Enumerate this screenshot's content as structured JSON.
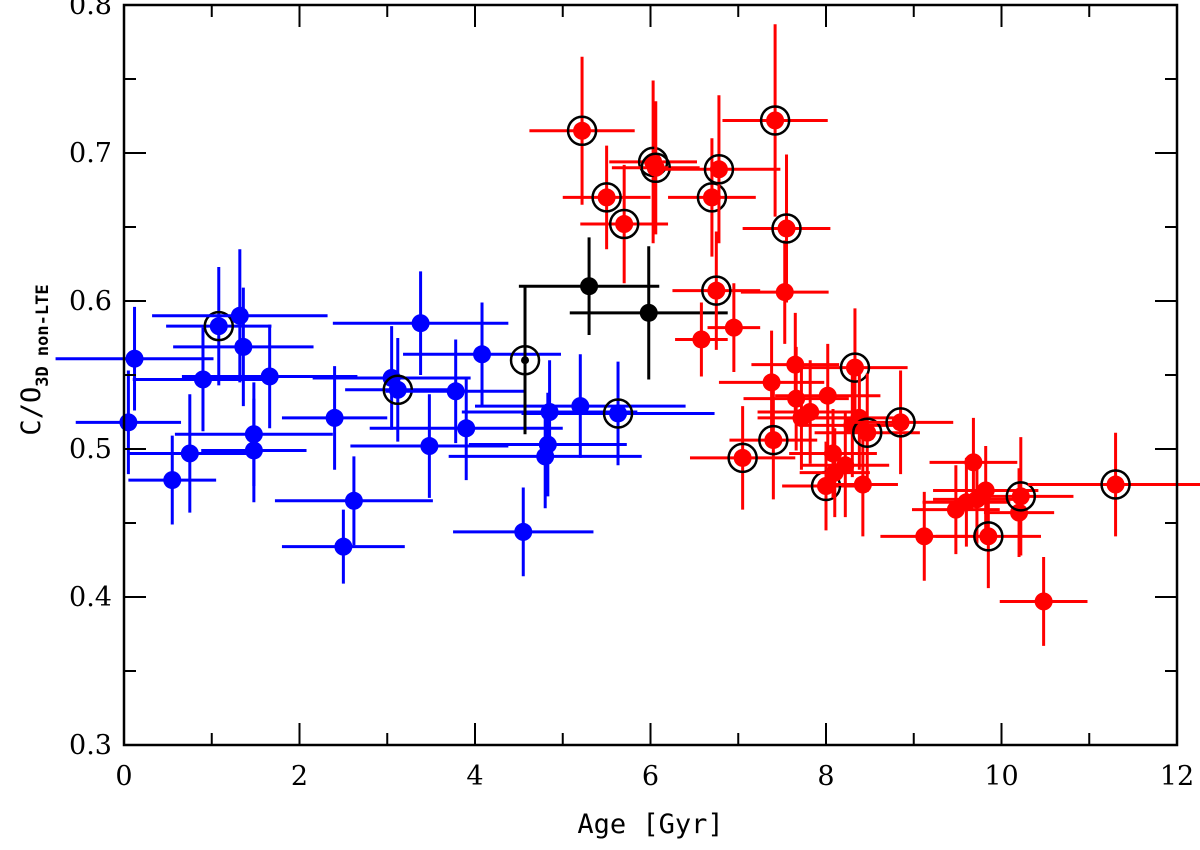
{
  "chart_data": {
    "type": "scatter",
    "xlabel": "Age [Gyr]",
    "ylabel": "C/O",
    "ylabel_subscript": "3D non-LTE",
    "xlim": [
      0,
      12
    ],
    "ylim": [
      0.3,
      0.8
    ],
    "x_ticks": [
      0,
      2,
      4,
      6,
      8,
      10,
      12
    ],
    "y_ticks": [
      0.3,
      0.4,
      0.5,
      0.6,
      0.7,
      0.8
    ],
    "x_tick_labels": [
      "0",
      "2",
      "4",
      "6",
      "8",
      "10",
      "12"
    ],
    "y_tick_labels": [
      "0.3",
      "0.4",
      "0.5",
      "0.6",
      "0.7",
      "0.8"
    ],
    "grid": false,
    "colors": {
      "blue": "#0000ff",
      "red": "#ff0000",
      "black": "#000000",
      "ring": "#000000"
    },
    "series": [
      {
        "color": "blue",
        "points": [
          {
            "x": 0.05,
            "y": 0.518,
            "ex": 0.6,
            "ey": 0.035,
            "circled": false
          },
          {
            "x": 0.12,
            "y": 0.561,
            "ex": 0.9,
            "ey": 0.035,
            "circled": false
          },
          {
            "x": 0.55,
            "y": 0.479,
            "ex": 0.5,
            "ey": 0.03,
            "circled": false
          },
          {
            "x": 0.75,
            "y": 0.497,
            "ex": 0.7,
            "ey": 0.04,
            "circled": false
          },
          {
            "x": 0.9,
            "y": 0.547,
            "ex": 0.8,
            "ey": 0.035,
            "circled": false
          },
          {
            "x": 1.08,
            "y": 0.583,
            "ex": 0.6,
            "ey": 0.04,
            "circled": true
          },
          {
            "x": 1.32,
            "y": 0.59,
            "ex": 1.0,
            "ey": 0.045,
            "circled": false
          },
          {
            "x": 1.36,
            "y": 0.569,
            "ex": 0.8,
            "ey": 0.04,
            "circled": false
          },
          {
            "x": 1.48,
            "y": 0.51,
            "ex": 0.9,
            "ey": 0.035,
            "circled": false
          },
          {
            "x": 1.48,
            "y": 0.499,
            "ex": 0.6,
            "ey": 0.035,
            "circled": false
          },
          {
            "x": 1.66,
            "y": 0.549,
            "ex": 1.0,
            "ey": 0.035,
            "circled": false
          },
          {
            "x": 2.4,
            "y": 0.521,
            "ex": 0.6,
            "ey": 0.035,
            "circled": false
          },
          {
            "x": 2.5,
            "y": 0.434,
            "ex": 0.7,
            "ey": 0.025,
            "circled": false
          },
          {
            "x": 2.62,
            "y": 0.465,
            "ex": 0.9,
            "ey": 0.03,
            "circled": false
          },
          {
            "x": 3.05,
            "y": 0.548,
            "ex": 0.9,
            "ey": 0.035,
            "circled": false
          },
          {
            "x": 3.12,
            "y": 0.54,
            "ex": 0.6,
            "ey": 0.035,
            "circled": true
          },
          {
            "x": 3.38,
            "y": 0.585,
            "ex": 1.0,
            "ey": 0.035,
            "circled": false
          },
          {
            "x": 3.48,
            "y": 0.502,
            "ex": 0.9,
            "ey": 0.035,
            "circled": false
          },
          {
            "x": 3.78,
            "y": 0.539,
            "ex": 0.8,
            "ey": 0.035,
            "circled": false
          },
          {
            "x": 3.9,
            "y": 0.514,
            "ex": 1.1,
            "ey": 0.035,
            "circled": false
          },
          {
            "x": 4.08,
            "y": 0.564,
            "ex": 0.9,
            "ey": 0.035,
            "circled": false
          },
          {
            "x": 4.55,
            "y": 0.444,
            "ex": 0.8,
            "ey": 0.03,
            "circled": false
          },
          {
            "x": 4.8,
            "y": 0.495,
            "ex": 1.1,
            "ey": 0.035,
            "circled": false
          },
          {
            "x": 4.83,
            "y": 0.503,
            "ex": 0.9,
            "ey": 0.035,
            "circled": false
          },
          {
            "x": 4.85,
            "y": 0.525,
            "ex": 1.0,
            "ey": 0.035,
            "circled": false
          },
          {
            "x": 5.2,
            "y": 0.529,
            "ex": 1.2,
            "ey": 0.035,
            "circled": false
          },
          {
            "x": 5.63,
            "y": 0.524,
            "ex": 1.1,
            "ey": 0.035,
            "circled": true
          }
        ]
      },
      {
        "color": "black",
        "points": [
          {
            "x": 4.57,
            "y": 0.56,
            "ex": 0.0,
            "ey": 0.05,
            "circled": true,
            "small": true
          },
          {
            "x": 5.3,
            "y": 0.61,
            "ex": 0.8,
            "ey": 0.033,
            "circled": false
          },
          {
            "x": 5.98,
            "y": 0.592,
            "ex": 0.9,
            "ey": 0.045,
            "circled": false
          }
        ]
      },
      {
        "color": "red",
        "points": [
          {
            "x": 5.22,
            "y": 0.715,
            "ex": 0.6,
            "ey": 0.05,
            "circled": true
          },
          {
            "x": 5.5,
            "y": 0.67,
            "ex": 0.5,
            "ey": 0.035,
            "circled": true
          },
          {
            "x": 5.7,
            "y": 0.652,
            "ex": 0.5,
            "ey": 0.04,
            "circled": true
          },
          {
            "x": 6.03,
            "y": 0.694,
            "ex": 0.5,
            "ey": 0.055,
            "circled": true
          },
          {
            "x": 6.06,
            "y": 0.69,
            "ex": 0.5,
            "ey": 0.045,
            "circled": true
          },
          {
            "x": 6.58,
            "y": 0.574,
            "ex": 0.3,
            "ey": 0.025,
            "circled": false
          },
          {
            "x": 6.7,
            "y": 0.67,
            "ex": 0.5,
            "ey": 0.04,
            "circled": true
          },
          {
            "x": 6.75,
            "y": 0.607,
            "ex": 0.5,
            "ey": 0.04,
            "circled": true
          },
          {
            "x": 6.78,
            "y": 0.689,
            "ex": 0.7,
            "ey": 0.05,
            "circled": true
          },
          {
            "x": 6.95,
            "y": 0.582,
            "ex": 0.3,
            "ey": 0.03,
            "circled": false
          },
          {
            "x": 7.05,
            "y": 0.494,
            "ex": 0.6,
            "ey": 0.035,
            "circled": true
          },
          {
            "x": 7.38,
            "y": 0.545,
            "ex": 0.6,
            "ey": 0.035,
            "circled": false
          },
          {
            "x": 7.4,
            "y": 0.506,
            "ex": 0.5,
            "ey": 0.04,
            "circled": true
          },
          {
            "x": 7.42,
            "y": 0.722,
            "ex": 0.6,
            "ey": 0.065,
            "circled": true
          },
          {
            "x": 7.53,
            "y": 0.606,
            "ex": 0.5,
            "ey": 0.035,
            "circled": false
          },
          {
            "x": 7.55,
            "y": 0.649,
            "ex": 0.5,
            "ey": 0.05,
            "circled": true
          },
          {
            "x": 7.65,
            "y": 0.557,
            "ex": 0.5,
            "ey": 0.035,
            "circled": false
          },
          {
            "x": 7.66,
            "y": 0.534,
            "ex": 0.6,
            "ey": 0.035,
            "circled": false
          },
          {
            "x": 7.72,
            "y": 0.521,
            "ex": 0.5,
            "ey": 0.035,
            "circled": false
          },
          {
            "x": 7.82,
            "y": 0.525,
            "ex": 0.6,
            "ey": 0.035,
            "circled": false
          },
          {
            "x": 8.0,
            "y": 0.475,
            "ex": 0.5,
            "ey": 0.03,
            "circled": true
          },
          {
            "x": 8.02,
            "y": 0.536,
            "ex": 0.6,
            "ey": 0.035,
            "circled": false
          },
          {
            "x": 8.08,
            "y": 0.497,
            "ex": 0.5,
            "ey": 0.03,
            "circled": false
          },
          {
            "x": 8.1,
            "y": 0.484,
            "ex": 0.4,
            "ey": 0.03,
            "circled": false
          },
          {
            "x": 8.22,
            "y": 0.489,
            "ex": 0.5,
            "ey": 0.035,
            "circled": false
          },
          {
            "x": 8.3,
            "y": 0.516,
            "ex": 0.6,
            "ey": 0.035,
            "circled": false
          },
          {
            "x": 8.33,
            "y": 0.555,
            "ex": 0.6,
            "ey": 0.04,
            "circled": true
          },
          {
            "x": 8.38,
            "y": 0.521,
            "ex": 0.5,
            "ey": 0.035,
            "circled": false
          },
          {
            "x": 8.42,
            "y": 0.476,
            "ex": 0.4,
            "ey": 0.035,
            "circled": false
          },
          {
            "x": 8.47,
            "y": 0.511,
            "ex": 0.6,
            "ey": 0.04,
            "circled": true
          },
          {
            "x": 8.85,
            "y": 0.518,
            "ex": 0.6,
            "ey": 0.035,
            "circled": true
          },
          {
            "x": 9.12,
            "y": 0.441,
            "ex": 0.5,
            "ey": 0.03,
            "circled": false
          },
          {
            "x": 9.48,
            "y": 0.459,
            "ex": 0.5,
            "ey": 0.03,
            "circled": false
          },
          {
            "x": 9.6,
            "y": 0.464,
            "ex": 0.5,
            "ey": 0.03,
            "circled": false
          },
          {
            "x": 9.68,
            "y": 0.491,
            "ex": 0.5,
            "ey": 0.03,
            "circled": false
          },
          {
            "x": 9.72,
            "y": 0.466,
            "ex": 0.5,
            "ey": 0.03,
            "circled": false
          },
          {
            "x": 9.82,
            "y": 0.472,
            "ex": 0.6,
            "ey": 0.03,
            "circled": false
          },
          {
            "x": 9.85,
            "y": 0.441,
            "ex": 0.6,
            "ey": 0.035,
            "circled": true
          },
          {
            "x": 10.2,
            "y": 0.457,
            "ex": 0.4,
            "ey": 0.03,
            "circled": false
          },
          {
            "x": 10.22,
            "y": 0.468,
            "ex": 0.6,
            "ey": 0.04,
            "circled": true
          },
          {
            "x": 10.48,
            "y": 0.397,
            "ex": 0.5,
            "ey": 0.03,
            "circled": false
          },
          {
            "x": 11.3,
            "y": 0.476,
            "ex": 1.0,
            "ey": 0.035,
            "circled": true
          }
        ]
      }
    ]
  }
}
